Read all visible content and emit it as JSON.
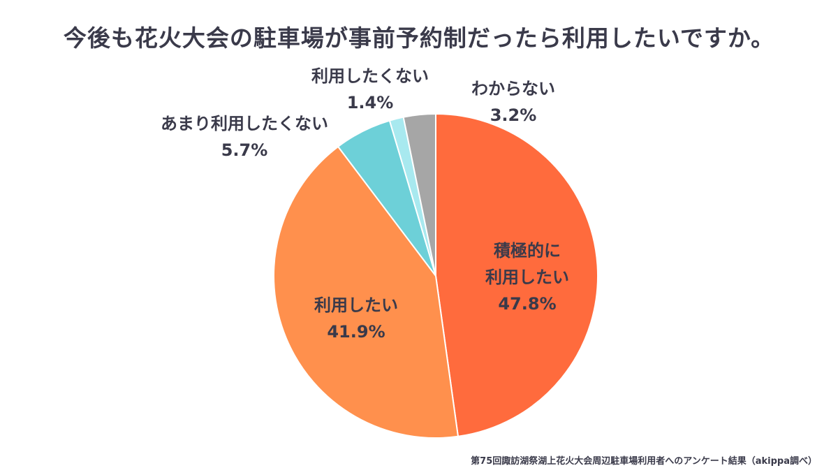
{
  "title": "今後も花火大会の駐車場が事前予約制だったら利用したいですか。",
  "source": "第75回諏訪湖祭湖上花火大会周辺駐車場利用者へのアンケート結果（akippa調べ）",
  "chart_data": {
    "type": "pie",
    "title": "今後も花火大会の駐車場が事前予約制だったら利用したいですか。",
    "unit": "%",
    "start": "12 o'clock",
    "direction": "clockwise",
    "slices": [
      {
        "label_lines": [
          "積極的に",
          "利用したい"
        ],
        "value": 47.8,
        "value_text": "47.8%",
        "color": "#ff6b3d"
      },
      {
        "label_lines": [
          "利用したい"
        ],
        "value": 41.9,
        "value_text": "41.9%",
        "color": "#ff904d"
      },
      {
        "label_lines": [
          "あまり利用したくない"
        ],
        "value": 5.7,
        "value_text": "5.7%",
        "color": "#6dd0d8"
      },
      {
        "label_lines": [
          "利用したくない"
        ],
        "value": 1.4,
        "value_text": "1.4%",
        "color": "#a8e9ef"
      },
      {
        "label_lines": [
          "わからない"
        ],
        "value": 3.2,
        "value_text": "3.2%",
        "color": "#a6a6a6"
      }
    ]
  }
}
